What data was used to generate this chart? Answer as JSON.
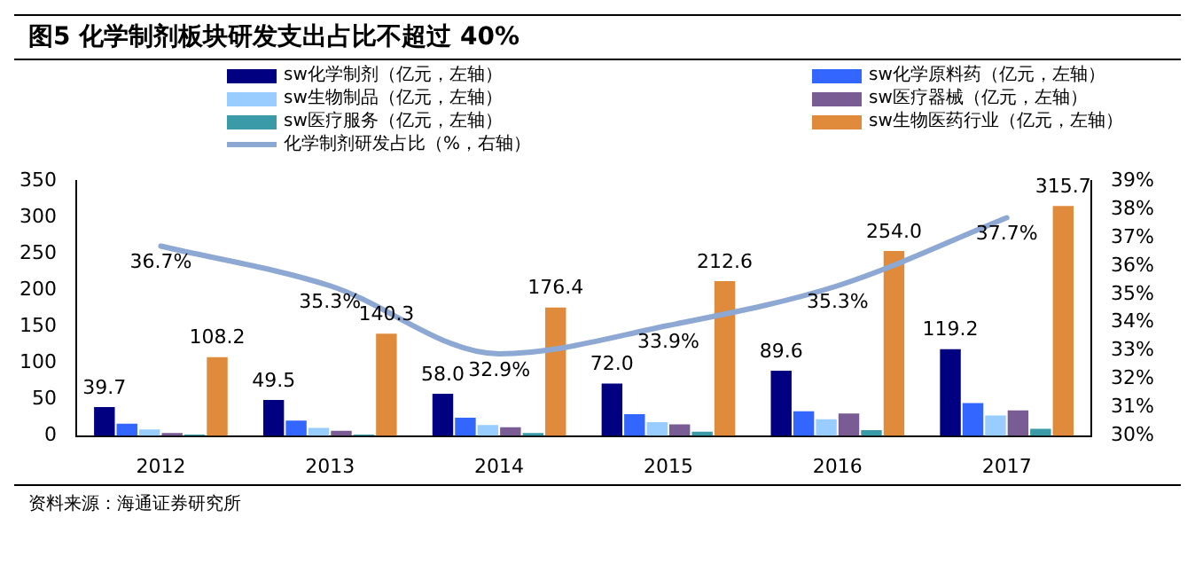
{
  "chart_data": {
    "type": "bar",
    "title": "图5  化学制剂板块研发支出占比不超过 40%",
    "categories": [
      "2012",
      "2013",
      "2014",
      "2015",
      "2016",
      "2017"
    ],
    "series": [
      {
        "name": "sw化学制剂（亿元，左轴）",
        "color": "#000080",
        "values": [
          39.7,
          49.5,
          58.0,
          72.0,
          89.6,
          119.2
        ],
        "value_labels": [
          "39.7",
          "49.5",
          "58.0",
          "72.0",
          "89.6",
          "119.2"
        ]
      },
      {
        "name": "sw化学原料药（亿元，左轴）",
        "color": "#3366ff",
        "values": [
          17,
          21,
          25,
          30,
          34,
          45
        ]
      },
      {
        "name": "sw生物制品（亿元，左轴）",
        "color": "#99ccff",
        "values": [
          9,
          11,
          15,
          19,
          23,
          28
        ]
      },
      {
        "name": "sw医疗器械（亿元，左轴）",
        "color": "#7a5c94",
        "values": [
          4,
          7,
          12,
          16,
          31,
          35
        ]
      },
      {
        "name": "sw医疗服务（亿元，左轴）",
        "color": "#3a9aa8",
        "values": [
          2,
          2,
          4,
          6,
          8,
          10
        ]
      },
      {
        "name": "sw生物医药行业（亿元，左轴）",
        "color": "#e08a3c",
        "values": [
          108.2,
          140.3,
          176.4,
          212.6,
          254.0,
          315.7
        ],
        "value_labels": [
          "108.2",
          "140.3",
          "176.4",
          "212.6",
          "254.0",
          "315.7"
        ]
      },
      {
        "name": "化学制剂研发占比（%，右轴）",
        "type": "line",
        "axis": "y2",
        "color": "#8ea8d4",
        "values": [
          36.7,
          35.3,
          32.9,
          33.9,
          35.3,
          37.7
        ],
        "value_labels": [
          "36.7%",
          "35.3%",
          "32.9%",
          "33.9%",
          "35.3%",
          "37.7%"
        ],
        "marker": "none"
      }
    ],
    "ylim": [
      0,
      350
    ],
    "yticks": [
      0,
      50,
      100,
      150,
      200,
      250,
      300,
      350
    ],
    "y2lim": [
      30,
      39
    ],
    "y2ticks": [
      {
        "value": 30,
        "label": "30%"
      },
      {
        "value": 31,
        "label": "31%"
      },
      {
        "value": 32,
        "label": "32%"
      },
      {
        "value": 33,
        "label": "33%"
      },
      {
        "value": 34,
        "label": "34%"
      },
      {
        "value": 35,
        "label": "35%"
      },
      {
        "value": 36,
        "label": "36%"
      },
      {
        "value": 37,
        "label": "37%"
      },
      {
        "value": 38,
        "label": "38%"
      },
      {
        "value": 39,
        "label": "39%"
      }
    ],
    "legend": "top",
    "annotations": [
      "资料来源：海通证券研究所"
    ]
  }
}
